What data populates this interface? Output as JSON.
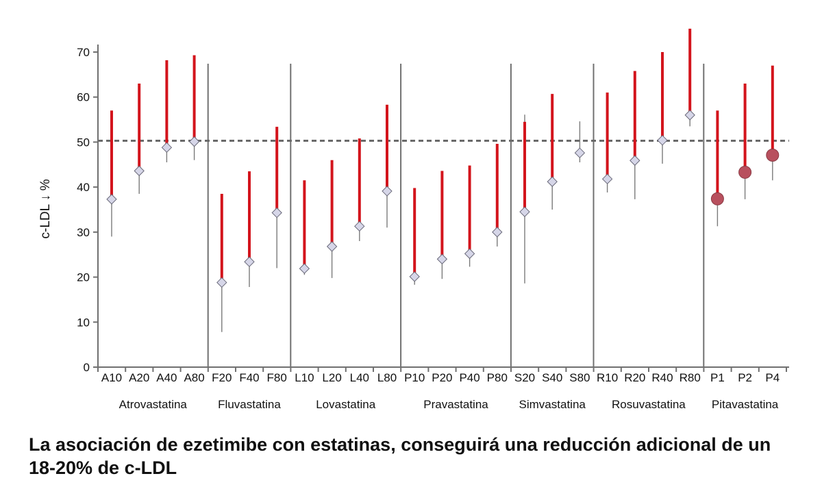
{
  "chart_data": {
    "type": "scatter",
    "title": "",
    "xlabel": "",
    "ylabel": "c-LDL ↓ %",
    "ylim": [
      0,
      75
    ],
    "yticks": [
      0,
      10,
      20,
      30,
      40,
      50,
      60,
      70
    ],
    "reference_line": {
      "y": 50.3,
      "style": "dashed"
    },
    "grid": false,
    "colors": {
      "range_bar": "#d3141c",
      "whisker": "#7a7a7a",
      "diamond_fill": "#d6d6e8",
      "circle_fill": "#b8505e",
      "axis": "#707070"
    },
    "groups": [
      {
        "name": "Atrovastatina",
        "points": [
          {
            "label": "A10",
            "value": 37.3,
            "bar_high": 57.0,
            "whisker_low": 29.0,
            "whisker_high": 37.3,
            "marker": "diamond"
          },
          {
            "label": "A20",
            "value": 43.6,
            "bar_high": 63.0,
            "whisker_low": 38.5,
            "whisker_high": 43.6,
            "marker": "diamond"
          },
          {
            "label": "A40",
            "value": 48.8,
            "bar_high": 68.2,
            "whisker_low": 45.5,
            "whisker_high": 48.8,
            "marker": "diamond"
          },
          {
            "label": "A80",
            "value": 50.1,
            "bar_high": 69.3,
            "whisker_low": 46.0,
            "whisker_high": 50.1,
            "marker": "diamond"
          }
        ]
      },
      {
        "name": "Fluvastatina",
        "points": [
          {
            "label": "F20",
            "value": 18.8,
            "bar_high": 38.5,
            "whisker_low": 7.8,
            "whisker_high": 18.8,
            "marker": "diamond"
          },
          {
            "label": "F40",
            "value": 23.4,
            "bar_high": 43.5,
            "whisker_low": 17.8,
            "whisker_high": 27.0,
            "marker": "diamond"
          },
          {
            "label": "F80",
            "value": 34.3,
            "bar_high": 53.4,
            "whisker_low": 22.0,
            "whisker_high": 34.3,
            "marker": "diamond"
          }
        ]
      },
      {
        "name": "Lovastatina",
        "points": [
          {
            "label": "L10",
            "value": 21.9,
            "bar_high": 41.5,
            "whisker_low": 20.5,
            "whisker_high": 24.5,
            "marker": "diamond"
          },
          {
            "label": "L20",
            "value": 26.8,
            "bar_high": 46.0,
            "whisker_low": 19.8,
            "whisker_high": 28.0,
            "marker": "diamond"
          },
          {
            "label": "L40",
            "value": 31.3,
            "bar_high": 50.8,
            "whisker_low": 28.0,
            "whisker_high": 31.3,
            "marker": "diamond"
          },
          {
            "label": "L80",
            "value": 39.1,
            "bar_high": 58.3,
            "whisker_low": 31.0,
            "whisker_high": 39.1,
            "marker": "diamond"
          }
        ]
      },
      {
        "name": "Pravastatina",
        "points": [
          {
            "label": "P10",
            "value": 20.1,
            "bar_high": 39.8,
            "whisker_low": 18.3,
            "whisker_high": 33.5,
            "marker": "diamond"
          },
          {
            "label": "P20",
            "value": 24.0,
            "bar_high": 43.6,
            "whisker_low": 19.6,
            "whisker_high": 29.2,
            "marker": "diamond"
          },
          {
            "label": "P40",
            "value": 25.2,
            "bar_high": 44.8,
            "whisker_low": 22.3,
            "whisker_high": 34.8,
            "marker": "diamond"
          },
          {
            "label": "P80",
            "value": 30.0,
            "bar_high": 49.6,
            "whisker_low": 26.8,
            "whisker_high": 31.0,
            "marker": "diamond"
          }
        ]
      },
      {
        "name": "Simvastatina",
        "points": [
          {
            "label": "S20",
            "value": 34.5,
            "bar_high": 54.5,
            "whisker_low": 18.6,
            "whisker_high": 56.1,
            "marker": "diamond"
          },
          {
            "label": "S40",
            "value": 41.2,
            "bar_high": 60.7,
            "whisker_low": 35.0,
            "whisker_high": 43.0,
            "marker": "diamond"
          },
          {
            "label": "S80",
            "value": 47.6,
            "bar_high": null,
            "whisker_low": 45.5,
            "whisker_high": 54.6,
            "marker": "diamond"
          }
        ]
      },
      {
        "name": "Rosuvastatina",
        "points": [
          {
            "label": "R10",
            "value": 41.8,
            "bar_high": 61.0,
            "whisker_low": 38.8,
            "whisker_high": 46.3,
            "marker": "diamond"
          },
          {
            "label": "R20",
            "value": 45.9,
            "bar_high": 65.8,
            "whisker_low": 37.3,
            "whisker_high": 47.0,
            "marker": "diamond"
          },
          {
            "label": "R40",
            "value": 50.4,
            "bar_high": 70.0,
            "whisker_low": 45.2,
            "whisker_high": 53.3,
            "marker": "diamond"
          },
          {
            "label": "R80",
            "value": 56.0,
            "bar_high": 75.2,
            "whisker_low": 53.5,
            "whisker_high": 59.5,
            "marker": "diamond"
          }
        ]
      },
      {
        "name": "Pitavastatina",
        "points": [
          {
            "label": "P1",
            "value": 37.4,
            "bar_high": 57.0,
            "whisker_low": 31.3,
            "whisker_high": 38.5,
            "marker": "circle"
          },
          {
            "label": "P2",
            "value": 43.3,
            "bar_high": 63.0,
            "whisker_low": 37.3,
            "whisker_high": 48.8,
            "marker": "circle"
          },
          {
            "label": "P4",
            "value": 47.1,
            "bar_high": 67.0,
            "whisker_low": 41.5,
            "whisker_high": 53.0,
            "marker": "circle"
          }
        ]
      }
    ]
  },
  "caption": "La asociación de ezetimibe con estatinas, conseguirá una reducción adicional de un 18-20% de c-LDL"
}
